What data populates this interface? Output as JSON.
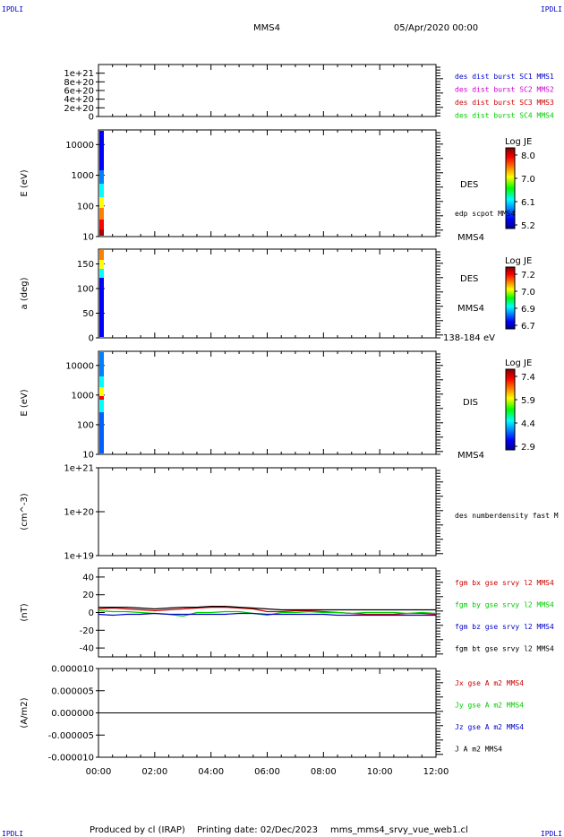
{
  "header": {
    "corner_tl": "IPDLI",
    "corner_tr": "IPDLI",
    "corner_bl": "IPDLI",
    "corner_br": "IPDLI",
    "spacecraft": "MMS4",
    "date": "05/Apr/2020 00:00"
  },
  "footer": {
    "produced_by": "Produced by cl (IRAP)",
    "printing_date": "Printing date: 02/Dec/2023",
    "filename": "mms_mms4_srvy_vue_web1.cl"
  },
  "colors": {
    "blue": "#0000cc",
    "magenta": "#cc00cc",
    "red": "#cc0000",
    "green": "#00cc00",
    "black": "#000000"
  },
  "chart_data": [
    {
      "type": "line",
      "ylim": [
        0,
        1.2e+21
      ],
      "yticks": [
        "0",
        "2e+20",
        "4e+20",
        "6e+20",
        "8e+20",
        "1e+21"
      ],
      "ytick_values": [
        0,
        2e+20,
        4e+20,
        6e+20,
        8e+20,
        1e+21
      ],
      "legend": [
        {
          "label": "des dist burst SC1 MMS1",
          "color": "#0000cc"
        },
        {
          "label": "des dist burst SC2 MMS2",
          "color": "#cc00cc"
        },
        {
          "label": "des dist burst SC3 MMS3",
          "color": "#cc0000"
        },
        {
          "label": "des dist burst SC4 MMS4",
          "color": "#00cc00"
        }
      ]
    },
    {
      "type": "heatmap",
      "ylabel": "E (eV)",
      "scale": "log",
      "ylim": [
        10,
        30000
      ],
      "yticks": [
        "10",
        "100",
        "1000",
        "10000"
      ],
      "ytick_values": [
        10,
        100,
        1000,
        10000
      ],
      "right_labels": [
        "DES",
        "edp scpot MMS4",
        "MMS4"
      ],
      "colorbar": {
        "title": "Log JE",
        "ticks": [
          "8.0",
          "7.0",
          "6.1",
          "5.2"
        ]
      }
    },
    {
      "type": "heatmap",
      "ylabel": "a (deg)",
      "ylim": [
        0,
        180
      ],
      "yticks": [
        "0",
        "50",
        "100",
        "150"
      ],
      "ytick_values": [
        0,
        50,
        100,
        150
      ],
      "right_labels": [
        "DES",
        "MMS4",
        "138-184 eV"
      ],
      "colorbar": {
        "title": "Log JE",
        "ticks": [
          "7.2",
          "7.0",
          "6.9",
          "6.7"
        ]
      }
    },
    {
      "type": "heatmap",
      "ylabel": "E (eV)",
      "scale": "log",
      "ylim": [
        10,
        30000
      ],
      "yticks": [
        "10",
        "100",
        "1000",
        "10000"
      ],
      "ytick_values": [
        10,
        100,
        1000,
        10000
      ],
      "right_labels": [
        "DIS",
        "MMS4"
      ],
      "colorbar": {
        "title": "Log JE",
        "ticks": [
          "7.4",
          "5.9",
          "4.4",
          "2.9"
        ]
      }
    },
    {
      "type": "line",
      "ylabel": "(cm^-3)",
      "scale": "log",
      "yticks": [
        "1e+19",
        "1e+20",
        "1e+21"
      ],
      "legend": [
        {
          "label": "des numberdensity fast M",
          "color": "#000000"
        }
      ]
    },
    {
      "type": "line",
      "ylabel": "(nT)",
      "ylim": [
        -50,
        50
      ],
      "yticks": [
        "-40",
        "-20",
        "0",
        "20",
        "40"
      ],
      "ytick_values": [
        -40,
        -20,
        0,
        20,
        40
      ],
      "x_hours": [
        0.0,
        0.5,
        1.0,
        1.5,
        2.0,
        2.5,
        3.0,
        3.5,
        4.0,
        4.5,
        5.0,
        5.5,
        6.0,
        6.5,
        7.0,
        7.5,
        8.0,
        8.5,
        9.0,
        9.5,
        10.0,
        10.5,
        11.0,
        11.5,
        12.0
      ],
      "series": [
        {
          "name": "fgm bx gse srvy l2 MMS4",
          "color": "#cc0000",
          "values": [
            4,
            5,
            4,
            3,
            2,
            3,
            4,
            5,
            6,
            6,
            5,
            4,
            1,
            1,
            2,
            2,
            1,
            0,
            -1,
            -2,
            -2,
            -2,
            -1,
            -1,
            -2
          ]
        },
        {
          "name": "fgm by gse srvy l2 MMS4",
          "color": "#00cc00",
          "values": [
            2,
            1,
            1,
            0,
            -1,
            -2,
            -4,
            0,
            0,
            1,
            1,
            -1,
            -3,
            0,
            0,
            1,
            0,
            0,
            -1,
            0,
            0,
            0,
            -1,
            0,
            -1
          ]
        },
        {
          "name": "fgm bz gse srvy l2 MMS4",
          "color": "#0000cc",
          "values": [
            -2,
            -3,
            -2,
            -2,
            -1,
            -2,
            -2,
            -2,
            -2,
            -2,
            -1,
            -1,
            -2,
            -2,
            -2,
            -2,
            -2,
            -3,
            -3,
            -3,
            -3,
            -3,
            -3,
            -3,
            -3
          ]
        },
        {
          "name": "fgm bt gse srvy l2 MMS4",
          "color": "#000000",
          "values": [
            6,
            6,
            6,
            5,
            4,
            5,
            6,
            6,
            7,
            7,
            6,
            5,
            4,
            3,
            3,
            3,
            3,
            3,
            3,
            3,
            3,
            3,
            3,
            3,
            3
          ]
        }
      ]
    },
    {
      "type": "line",
      "ylabel": "(A/m2)",
      "ylim": [
        -1e-05,
        1e-05
      ],
      "yticks": [
        "-0.000010",
        "-0.000005",
        "0.000000",
        "0.000005",
        "0.000010"
      ],
      "ytick_values": [
        -1e-05,
        -5e-06,
        0,
        5e-06,
        1e-05
      ],
      "xlim": [
        0,
        12
      ],
      "xticks": [
        "00:00",
        "02:00",
        "04:00",
        "06:00",
        "08:00",
        "10:00",
        "12:00"
      ],
      "legend": [
        {
          "label": "Jx gse A m2 MMS4",
          "color": "#cc0000"
        },
        {
          "label": "Jy gse A m2 MMS4",
          "color": "#00cc00"
        },
        {
          "label": "Jz gse A m2 MMS4",
          "color": "#0000cc"
        },
        {
          "label": "J A m2 MMS4",
          "color": "#000000"
        }
      ]
    }
  ]
}
